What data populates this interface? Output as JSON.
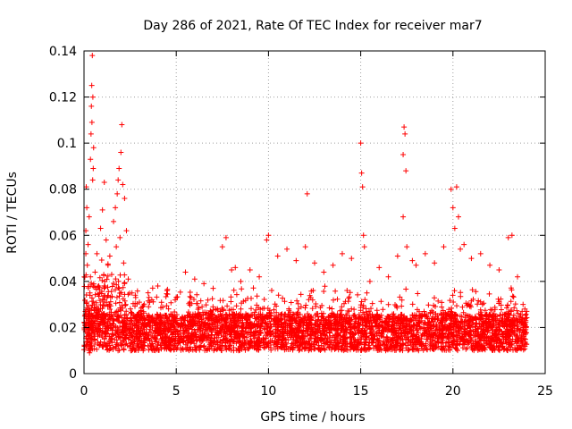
{
  "chart_data": {
    "type": "scatter",
    "title": "Day 286 of 2021, Rate Of TEC Index for receiver mar7",
    "xlabel": "GPS time / hours",
    "ylabel": "ROTI / TECUs",
    "xlim": [
      0,
      25
    ],
    "ylim": [
      0,
      0.14
    ],
    "xticks": [
      0,
      5,
      10,
      15,
      20,
      25
    ],
    "xtick_labels": [
      "0",
      "5",
      "10",
      "15",
      "20",
      "25"
    ],
    "yticks": [
      0,
      0.02,
      0.04,
      0.06,
      0.08,
      0.1,
      0.12,
      0.14
    ],
    "ytick_labels": [
      "0",
      "0.02",
      "0.04",
      "0.06",
      "0.08",
      "0.1",
      "0.12",
      "0.14"
    ],
    "grid": true,
    "marker": "+",
    "series": [
      {
        "name": "ROTI",
        "color": "#ff0000",
        "points": [
          [
            0.05,
            0.021
          ],
          [
            0.1,
            0.012
          ],
          [
            0.15,
            0.031
          ],
          [
            0.2,
            0.018
          ],
          [
            0.25,
            0.026
          ],
          [
            0.3,
            0.009
          ],
          [
            0.35,
            0.042
          ],
          [
            0.4,
            0.015
          ],
          [
            0.45,
            0.024
          ],
          [
            0.5,
            0.019
          ],
          [
            0.1,
            0.052
          ],
          [
            0.1,
            0.062
          ],
          [
            0.15,
            0.072
          ],
          [
            0.12,
            0.081
          ],
          [
            0.18,
            0.047
          ],
          [
            0.22,
            0.056
          ],
          [
            0.28,
            0.068
          ],
          [
            0.32,
            0.035
          ],
          [
            0.35,
            0.093
          ],
          [
            0.38,
            0.104
          ],
          [
            0.4,
            0.116
          ],
          [
            0.42,
            0.125
          ],
          [
            0.45,
            0.138
          ],
          [
            0.48,
            0.12
          ],
          [
            0.43,
            0.109
          ],
          [
            0.5,
            0.089
          ],
          [
            0.52,
            0.098
          ],
          [
            0.47,
            0.084
          ],
          [
            0.6,
            0.044
          ],
          [
            0.7,
            0.052
          ],
          [
            0.8,
            0.038
          ],
          [
            0.9,
            0.063
          ],
          [
            1.0,
            0.071
          ],
          [
            1.1,
            0.083
          ],
          [
            1.2,
            0.058
          ],
          [
            1.3,
            0.047
          ],
          [
            1.4,
            0.051
          ],
          [
            1.5,
            0.043
          ],
          [
            1.6,
            0.066
          ],
          [
            1.7,
            0.072
          ],
          [
            1.8,
            0.078
          ],
          [
            1.85,
            0.084
          ],
          [
            1.9,
            0.089
          ],
          [
            2.0,
            0.096
          ],
          [
            2.1,
            0.082
          ],
          [
            2.05,
            0.108
          ],
          [
            2.2,
            0.076
          ],
          [
            2.3,
            0.062
          ],
          [
            1.75,
            0.055
          ],
          [
            1.95,
            0.059
          ],
          [
            2.15,
            0.048
          ],
          [
            2.4,
            0.041
          ],
          [
            2.6,
            0.035
          ],
          [
            2.8,
            0.033
          ],
          [
            3.0,
            0.031
          ],
          [
            3.5,
            0.029
          ],
          [
            4.0,
            0.038
          ],
          [
            4.5,
            0.036
          ],
          [
            5.0,
            0.033
          ],
          [
            5.5,
            0.044
          ],
          [
            6.0,
            0.041
          ],
          [
            6.5,
            0.039
          ],
          [
            7.0,
            0.037
          ],
          [
            7.5,
            0.055
          ],
          [
            7.7,
            0.059
          ],
          [
            8.0,
            0.045
          ],
          [
            8.2,
            0.046
          ],
          [
            8.5,
            0.04
          ],
          [
            9.0,
            0.045
          ],
          [
            9.5,
            0.042
          ],
          [
            10.0,
            0.06
          ],
          [
            9.9,
            0.058
          ],
          [
            10.5,
            0.051
          ],
          [
            11.0,
            0.054
          ],
          [
            11.5,
            0.049
          ],
          [
            12.0,
            0.055
          ],
          [
            12.1,
            0.078
          ],
          [
            12.5,
            0.048
          ],
          [
            13.0,
            0.044
          ],
          [
            13.5,
            0.047
          ],
          [
            14.0,
            0.052
          ],
          [
            14.5,
            0.05
          ],
          [
            15.0,
            0.1
          ],
          [
            15.05,
            0.087
          ],
          [
            15.1,
            0.081
          ],
          [
            15.15,
            0.06
          ],
          [
            15.2,
            0.055
          ],
          [
            15.5,
            0.04
          ],
          [
            16.0,
            0.046
          ],
          [
            16.5,
            0.042
          ],
          [
            17.0,
            0.051
          ],
          [
            17.3,
            0.095
          ],
          [
            17.4,
            0.104
          ],
          [
            17.35,
            0.107
          ],
          [
            17.45,
            0.088
          ],
          [
            17.3,
            0.068
          ],
          [
            17.5,
            0.055
          ],
          [
            17.8,
            0.049
          ],
          [
            18.0,
            0.047
          ],
          [
            18.5,
            0.052
          ],
          [
            19.0,
            0.048
          ],
          [
            19.5,
            0.055
          ],
          [
            19.9,
            0.08
          ],
          [
            20.2,
            0.081
          ],
          [
            20.0,
            0.072
          ],
          [
            20.1,
            0.063
          ],
          [
            20.3,
            0.068
          ],
          [
            20.4,
            0.054
          ],
          [
            20.6,
            0.056
          ],
          [
            21.0,
            0.05
          ],
          [
            21.5,
            0.052
          ],
          [
            22.0,
            0.047
          ],
          [
            22.5,
            0.045
          ],
          [
            23.0,
            0.059
          ],
          [
            23.2,
            0.06
          ],
          [
            23.5,
            0.042
          ],
          [
            23.8,
            0.03
          ],
          [
            23.9,
            0.028
          ],
          [
            24.0,
            0.027
          ]
        ]
      }
    ]
  }
}
